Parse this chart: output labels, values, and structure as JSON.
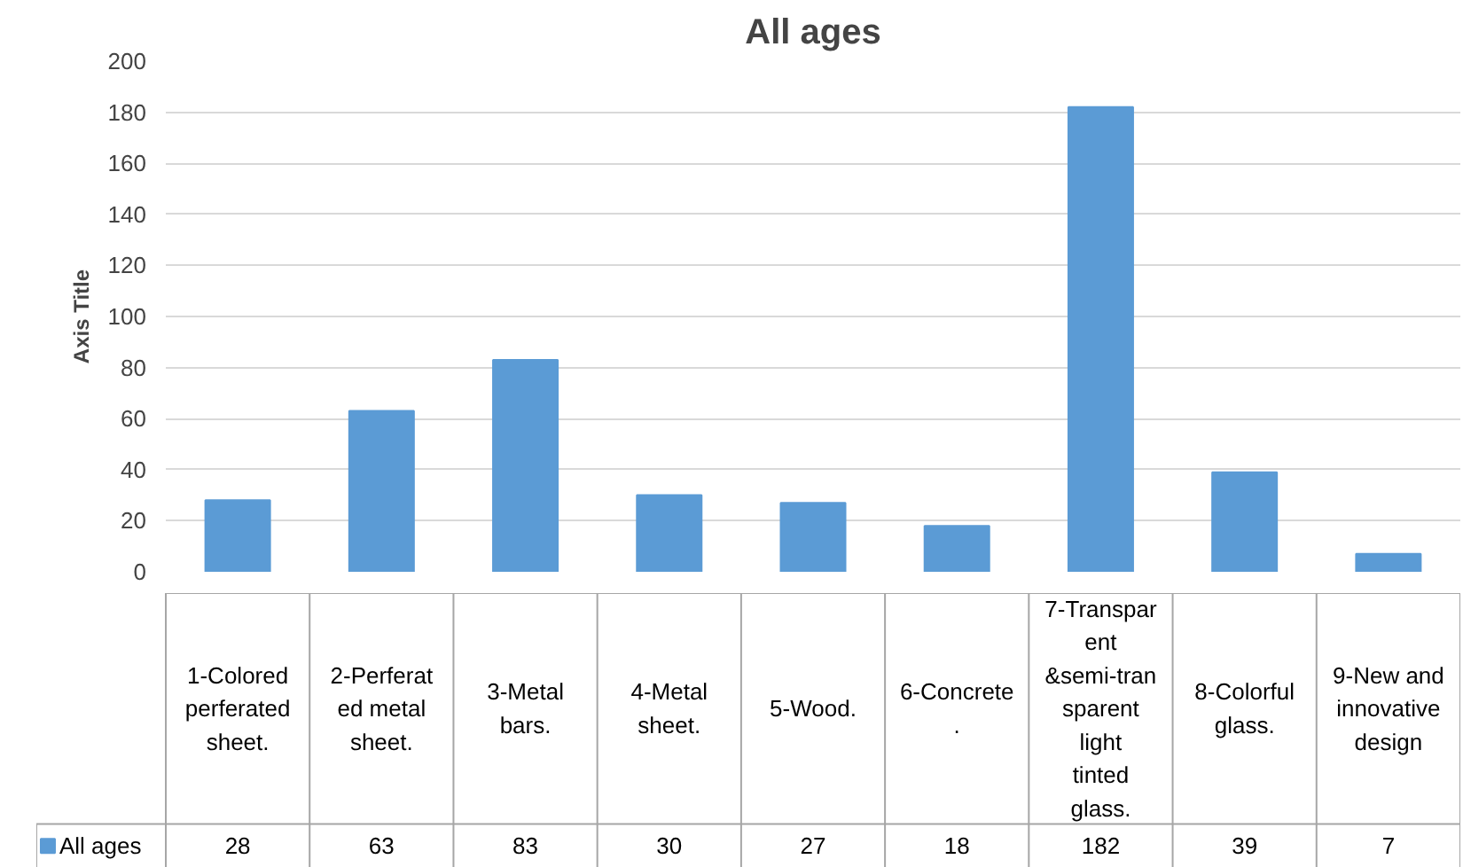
{
  "chart_data": {
    "type": "bar",
    "title": "All ages",
    "ylabel": "Axis Title",
    "categories": [
      "1-Colored perferated sheet.",
      "2-Perferated metal sheet.",
      "3-Metal bars.",
      "4-Metal sheet.",
      "5-Wood.",
      "6-Concrete.",
      "7-Transparent &semi-transparent light tinted glass.",
      "8-Colorful glass.",
      "9-New and innovative design"
    ],
    "series": [
      {
        "name": "All ages",
        "color": "#5b9bd5",
        "values": [
          28,
          63,
          83,
          30,
          27,
          18,
          182,
          39,
          7
        ]
      }
    ],
    "ylim": [
      0,
      200
    ],
    "yticks": [
      0,
      20,
      40,
      60,
      80,
      100,
      120,
      140,
      160,
      180,
      200
    ],
    "grid": "y",
    "legend": "bottom",
    "data_labels": true
  }
}
